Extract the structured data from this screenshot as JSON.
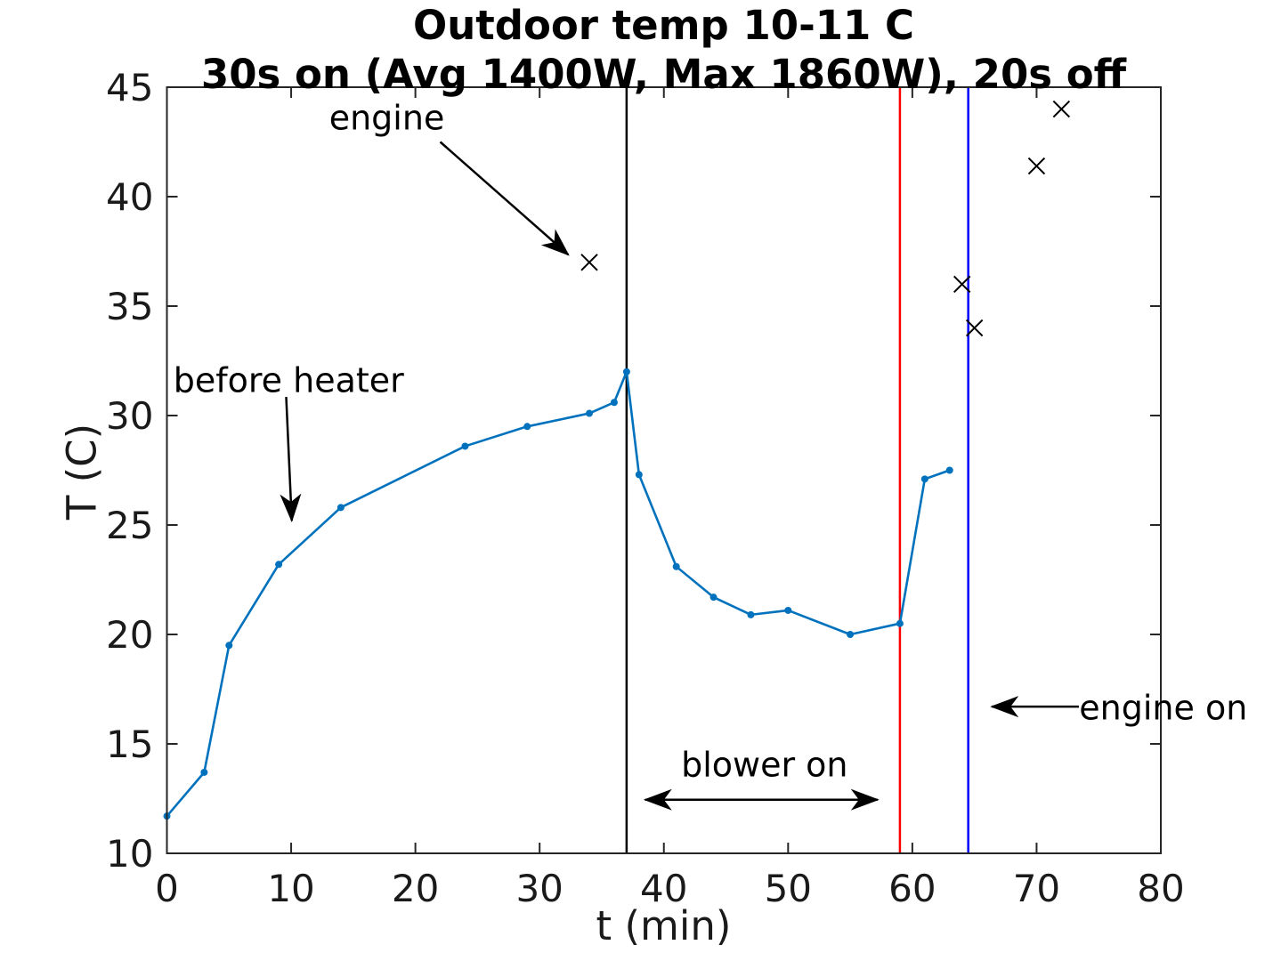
{
  "title": {
    "line1": "Outdoor temp 10-11 C",
    "line2": "30s on (Avg 1400W, Max 1860W), 20s off"
  },
  "chart_data": {
    "type": "line",
    "title": "Outdoor temp 10-11 C",
    "subtitle": "30s on (Avg 1400W, Max 1860W), 20s off",
    "xlabel": "t (min)",
    "ylabel": "T (C)",
    "xlim": [
      0,
      80
    ],
    "ylim": [
      10,
      45
    ],
    "xticks": [
      0,
      10,
      20,
      30,
      40,
      50,
      60,
      70,
      80
    ],
    "yticks": [
      10,
      15,
      20,
      25,
      30,
      35,
      40,
      45
    ],
    "grid": false,
    "legend_position": "none",
    "axis_color": "#262626",
    "series": [
      {
        "name": "before heater",
        "plot": "line",
        "color": "#0072BD",
        "marker": "dot",
        "points": [
          [
            0,
            11.7
          ],
          [
            3,
            13.7
          ],
          [
            5,
            19.5
          ],
          [
            9,
            23.2
          ],
          [
            14,
            25.8
          ],
          [
            24,
            28.6
          ],
          [
            29,
            29.5
          ],
          [
            34,
            30.1
          ],
          [
            36,
            30.6
          ],
          [
            37,
            32
          ],
          [
            38,
            27.3
          ],
          [
            41,
            23.1
          ],
          [
            44,
            21.7
          ],
          [
            47,
            20.9
          ],
          [
            50,
            21.1
          ],
          [
            55,
            20
          ],
          [
            59,
            20.5
          ],
          [
            61,
            27.1
          ],
          [
            63,
            27.5
          ]
        ]
      },
      {
        "name": "engine",
        "plot": "scatter",
        "color": "#000000",
        "marker": "x",
        "points": [
          [
            34,
            37
          ],
          [
            64,
            36
          ],
          [
            65,
            34
          ],
          [
            70,
            41.4
          ],
          [
            72,
            44
          ]
        ]
      }
    ],
    "vlines": [
      {
        "name": "heater-off-line",
        "x": 37,
        "color": "#000000"
      },
      {
        "name": "blower-off-line",
        "x": 59,
        "color": "#ff0000"
      },
      {
        "name": "engine-on-line",
        "x": 64.5,
        "color": "#0000ff"
      }
    ],
    "annotations": [
      {
        "id": "engine",
        "text": "engine",
        "text_pos": [
          17.7,
          43.6
        ],
        "arrows": [
          {
            "from": [
              22.0,
              42.5
            ],
            "to": [
              32.3,
              37.35
            ],
            "double": false
          }
        ]
      },
      {
        "id": "before-heater",
        "text": "before heater",
        "text_pos": [
          9.8,
          31.6
        ],
        "arrows": [
          {
            "from": [
              9.6,
              30.85
            ],
            "to": [
              10.05,
              25.2
            ],
            "double": false
          }
        ]
      },
      {
        "id": "blower-on",
        "text": "blower on",
        "text_pos": [
          48.1,
          14.05
        ],
        "arrows": [
          {
            "from": [
              38.5,
              12.45
            ],
            "to": [
              57.2,
              12.45
            ],
            "double": true
          }
        ]
      },
      {
        "id": "engine-on",
        "text": "engine on",
        "text_pos": [
          80.2,
          16.65
        ],
        "arrows": [
          {
            "from": [
              73.4,
              16.7
            ],
            "to": [
              66.4,
              16.7
            ],
            "double": false
          }
        ]
      }
    ]
  }
}
